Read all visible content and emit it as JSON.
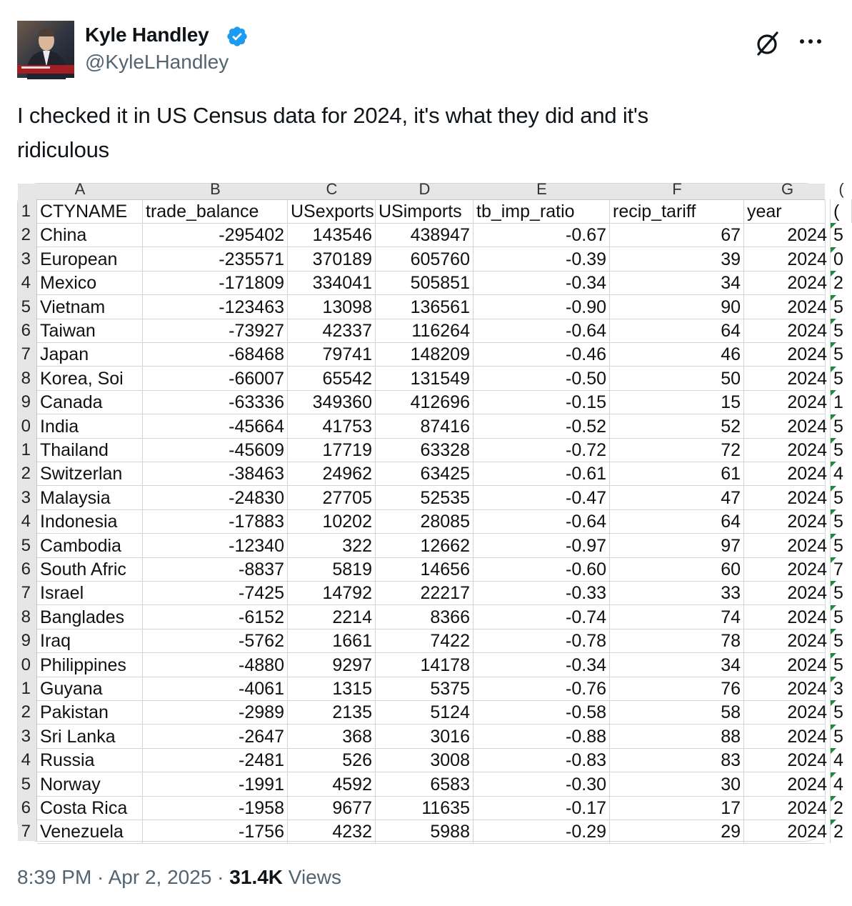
{
  "author": {
    "name": "Kyle Handley",
    "handle": "@KyleLHandley",
    "verified_icon": "verified-badge-icon",
    "accent": "#1d9bf0"
  },
  "tweet": {
    "text_line1": "I checked it in US Census data for 2024, it's what they did and it's",
    "text_line2": "ridiculous"
  },
  "spreadsheet": {
    "column_letters": [
      "A",
      "B",
      "C",
      "D",
      "E",
      "F",
      "G",
      "("
    ],
    "headers": [
      "CTYNAME",
      "trade_balance",
      "USexports",
      "USimports",
      "tb_imp_ratio",
      "recip_tariff",
      "year",
      "("
    ],
    "header_row_number": "1",
    "rows": [
      {
        "n": "2",
        "name": "China",
        "tb": "-295402",
        "ex": "143546",
        "im": "438947",
        "ratio": "-0.67",
        "tariff": "67",
        "year": "2024",
        "h": "5"
      },
      {
        "n": "3",
        "name": "European",
        "tb": "-235571",
        "ex": "370189",
        "im": "605760",
        "ratio": "-0.39",
        "tariff": "39",
        "year": "2024",
        "h": "0"
      },
      {
        "n": "4",
        "name": "Mexico",
        "tb": "-171809",
        "ex": "334041",
        "im": "505851",
        "ratio": "-0.34",
        "tariff": "34",
        "year": "2024",
        "h": "2"
      },
      {
        "n": "5",
        "name": "Vietnam",
        "tb": "-123463",
        "ex": "13098",
        "im": "136561",
        "ratio": "-0.90",
        "tariff": "90",
        "year": "2024",
        "h": "5"
      },
      {
        "n": "6",
        "name": "Taiwan",
        "tb": "-73927",
        "ex": "42337",
        "im": "116264",
        "ratio": "-0.64",
        "tariff": "64",
        "year": "2024",
        "h": "5"
      },
      {
        "n": "7",
        "name": "Japan",
        "tb": "-68468",
        "ex": "79741",
        "im": "148209",
        "ratio": "-0.46",
        "tariff": "46",
        "year": "2024",
        "h": "5"
      },
      {
        "n": "8",
        "name": "Korea, Soi",
        "tb": "-66007",
        "ex": "65542",
        "im": "131549",
        "ratio": "-0.50",
        "tariff": "50",
        "year": "2024",
        "h": "5"
      },
      {
        "n": "9",
        "name": "Canada",
        "tb": "-63336",
        "ex": "349360",
        "im": "412696",
        "ratio": "-0.15",
        "tariff": "15",
        "year": "2024",
        "h": "1"
      },
      {
        "n": "0",
        "name": "India",
        "tb": "-45664",
        "ex": "41753",
        "im": "87416",
        "ratio": "-0.52",
        "tariff": "52",
        "year": "2024",
        "h": "5"
      },
      {
        "n": "1",
        "name": "Thailand",
        "tb": "-45609",
        "ex": "17719",
        "im": "63328",
        "ratio": "-0.72",
        "tariff": "72",
        "year": "2024",
        "h": "5"
      },
      {
        "n": "2",
        "name": "Switzerlan",
        "tb": "-38463",
        "ex": "24962",
        "im": "63425",
        "ratio": "-0.61",
        "tariff": "61",
        "year": "2024",
        "h": "4"
      },
      {
        "n": "3",
        "name": "Malaysia",
        "tb": "-24830",
        "ex": "27705",
        "im": "52535",
        "ratio": "-0.47",
        "tariff": "47",
        "year": "2024",
        "h": "5"
      },
      {
        "n": "4",
        "name": "Indonesia",
        "tb": "-17883",
        "ex": "10202",
        "im": "28085",
        "ratio": "-0.64",
        "tariff": "64",
        "year": "2024",
        "h": "5"
      },
      {
        "n": "5",
        "name": "Cambodia",
        "tb": "-12340",
        "ex": "322",
        "im": "12662",
        "ratio": "-0.97",
        "tariff": "97",
        "year": "2024",
        "h": "5"
      },
      {
        "n": "6",
        "name": "South Afric",
        "tb": "-8837",
        "ex": "5819",
        "im": "14656",
        "ratio": "-0.60",
        "tariff": "60",
        "year": "2024",
        "h": "7"
      },
      {
        "n": "7",
        "name": "Israel",
        "tb": "-7425",
        "ex": "14792",
        "im": "22217",
        "ratio": "-0.33",
        "tariff": "33",
        "year": "2024",
        "h": "5"
      },
      {
        "n": "8",
        "name": "Banglades",
        "tb": "-6152",
        "ex": "2214",
        "im": "8366",
        "ratio": "-0.74",
        "tariff": "74",
        "year": "2024",
        "h": "5"
      },
      {
        "n": "9",
        "name": "Iraq",
        "tb": "-5762",
        "ex": "1661",
        "im": "7422",
        "ratio": "-0.78",
        "tariff": "78",
        "year": "2024",
        "h": "5"
      },
      {
        "n": "0",
        "name": "Philippines",
        "tb": "-4880",
        "ex": "9297",
        "im": "14178",
        "ratio": "-0.34",
        "tariff": "34",
        "year": "2024",
        "h": "5"
      },
      {
        "n": "1",
        "name": "Guyana",
        "tb": "-4061",
        "ex": "1315",
        "im": "5375",
        "ratio": "-0.76",
        "tariff": "76",
        "year": "2024",
        "h": "3"
      },
      {
        "n": "2",
        "name": "Pakistan",
        "tb": "-2989",
        "ex": "2135",
        "im": "5124",
        "ratio": "-0.58",
        "tariff": "58",
        "year": "2024",
        "h": "5"
      },
      {
        "n": "3",
        "name": "Sri Lanka",
        "tb": "-2647",
        "ex": "368",
        "im": "3016",
        "ratio": "-0.88",
        "tariff": "88",
        "year": "2024",
        "h": "5"
      },
      {
        "n": "4",
        "name": "Russia",
        "tb": "-2481",
        "ex": "526",
        "im": "3008",
        "ratio": "-0.83",
        "tariff": "83",
        "year": "2024",
        "h": "4"
      },
      {
        "n": "5",
        "name": "Norway",
        "tb": "-1991",
        "ex": "4592",
        "im": "6583",
        "ratio": "-0.30",
        "tariff": "30",
        "year": "2024",
        "h": "4"
      },
      {
        "n": "6",
        "name": "Costa Rica",
        "tb": "-1958",
        "ex": "9677",
        "im": "11635",
        "ratio": "-0.17",
        "tariff": "17",
        "year": "2024",
        "h": "2"
      },
      {
        "n": "7",
        "name": "Venezuela",
        "tb": "-1756",
        "ex": "4232",
        "im": "5988",
        "ratio": "-0.29",
        "tariff": "29",
        "year": "2024",
        "h": "2"
      }
    ]
  },
  "meta": {
    "time": "8:39 PM",
    "sep1": " · ",
    "date": "Apr 2, 2025",
    "sep2": " · ",
    "views_count": "31.4K",
    "views_label": " Views"
  },
  "icons": {
    "grok": "grok-icon",
    "more": "more-options-icon"
  }
}
